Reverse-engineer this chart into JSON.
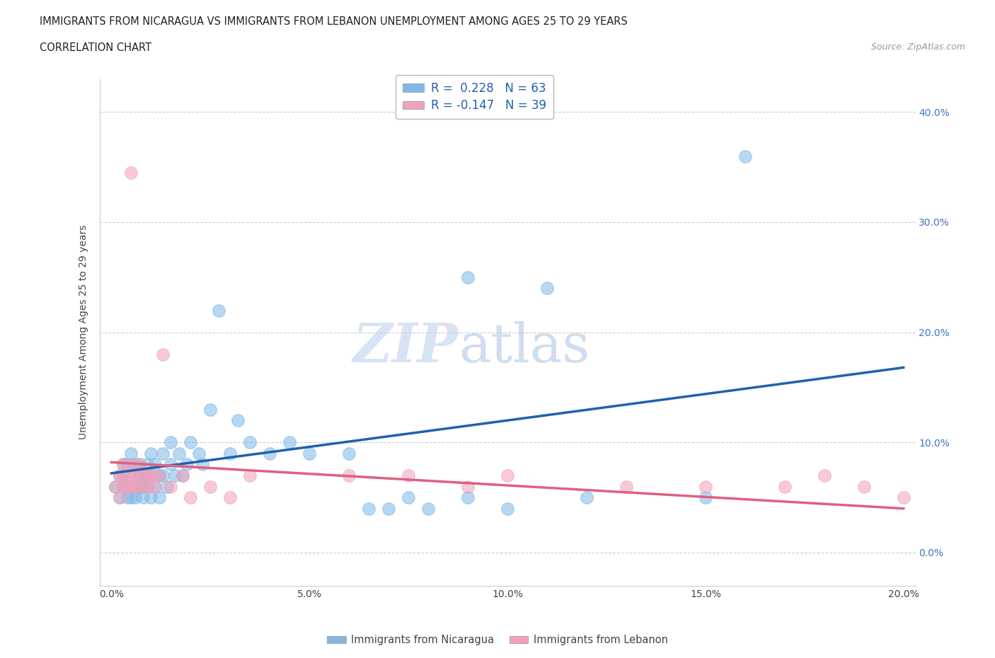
{
  "title_line1": "IMMIGRANTS FROM NICARAGUA VS IMMIGRANTS FROM LEBANON UNEMPLOYMENT AMONG AGES 25 TO 29 YEARS",
  "title_line2": "CORRELATION CHART",
  "source_text": "Source: ZipAtlas.com",
  "ylabel": "Unemployment Among Ages 25 to 29 years",
  "legend_label1": "Immigrants from Nicaragua",
  "legend_label2": "Immigrants from Lebanon",
  "legend_r1": "R =  0.228   N = 63",
  "legend_r2": "R = -0.147   N = 39",
  "xlim": [
    -0.003,
    0.203
  ],
  "ylim": [
    -0.03,
    0.43
  ],
  "xticks": [
    0.0,
    0.05,
    0.1,
    0.15,
    0.2
  ],
  "yticks": [
    0.0,
    0.1,
    0.2,
    0.3,
    0.4
  ],
  "xtick_labels": [
    "0.0%",
    "5.0%",
    "10.0%",
    "15.0%",
    "20.0%"
  ],
  "ytick_labels_right": [
    "0.0%",
    "10.0%",
    "20.0%",
    "30.0%",
    "40.0%"
  ],
  "blue_color": "#7fb8e8",
  "pink_color": "#f4a0b8",
  "blue_line_color": "#2060b0",
  "pink_line_color": "#e06080",
  "blue_scatter_x": [
    0.001,
    0.002,
    0.002,
    0.003,
    0.003,
    0.003,
    0.004,
    0.004,
    0.004,
    0.005,
    0.005,
    0.005,
    0.006,
    0.006,
    0.006,
    0.007,
    0.007,
    0.007,
    0.008,
    0.008,
    0.008,
    0.009,
    0.009,
    0.009,
    0.01,
    0.01,
    0.01,
    0.011,
    0.011,
    0.012,
    0.012,
    0.013,
    0.013,
    0.014,
    0.015,
    0.015,
    0.016,
    0.017,
    0.018,
    0.019,
    0.02,
    0.022,
    0.023,
    0.025,
    0.027,
    0.03,
    0.032,
    0.035,
    0.04,
    0.045,
    0.05,
    0.06,
    0.065,
    0.07,
    0.075,
    0.08,
    0.09,
    0.1,
    0.12,
    0.15,
    0.09,
    0.11,
    0.16
  ],
  "blue_scatter_y": [
    0.06,
    0.07,
    0.05,
    0.08,
    0.06,
    0.07,
    0.05,
    0.06,
    0.08,
    0.07,
    0.05,
    0.09,
    0.06,
    0.08,
    0.05,
    0.07,
    0.06,
    0.08,
    0.06,
    0.07,
    0.05,
    0.08,
    0.06,
    0.07,
    0.05,
    0.09,
    0.07,
    0.06,
    0.08,
    0.07,
    0.05,
    0.09,
    0.07,
    0.06,
    0.08,
    0.1,
    0.07,
    0.09,
    0.07,
    0.08,
    0.1,
    0.09,
    0.08,
    0.13,
    0.22,
    0.09,
    0.12,
    0.1,
    0.09,
    0.1,
    0.09,
    0.09,
    0.04,
    0.04,
    0.05,
    0.04,
    0.05,
    0.04,
    0.05,
    0.05,
    0.25,
    0.24,
    0.36
  ],
  "pink_scatter_x": [
    0.001,
    0.002,
    0.002,
    0.003,
    0.003,
    0.003,
    0.004,
    0.004,
    0.005,
    0.005,
    0.006,
    0.006,
    0.007,
    0.007,
    0.008,
    0.008,
    0.009,
    0.01,
    0.011,
    0.012,
    0.013,
    0.015,
    0.018,
    0.02,
    0.025,
    0.03,
    0.035,
    0.06,
    0.075,
    0.09,
    0.1,
    0.13,
    0.15,
    0.17,
    0.18,
    0.19,
    0.2,
    0.005,
    0.01
  ],
  "pink_scatter_y": [
    0.06,
    0.07,
    0.05,
    0.08,
    0.06,
    0.07,
    0.06,
    0.07,
    0.06,
    0.08,
    0.07,
    0.06,
    0.08,
    0.07,
    0.06,
    0.07,
    0.06,
    0.07,
    0.06,
    0.07,
    0.18,
    0.06,
    0.07,
    0.05,
    0.06,
    0.05,
    0.07,
    0.07,
    0.07,
    0.06,
    0.07,
    0.06,
    0.06,
    0.06,
    0.07,
    0.06,
    0.05,
    0.345,
    0.07
  ],
  "blue_line_x0": 0.0,
  "blue_line_y0": 0.072,
  "blue_line_x1": 0.2,
  "blue_line_y1": 0.168,
  "pink_line_x0": 0.0,
  "pink_line_y0": 0.082,
  "pink_line_x1": 0.2,
  "pink_line_y1": 0.04
}
